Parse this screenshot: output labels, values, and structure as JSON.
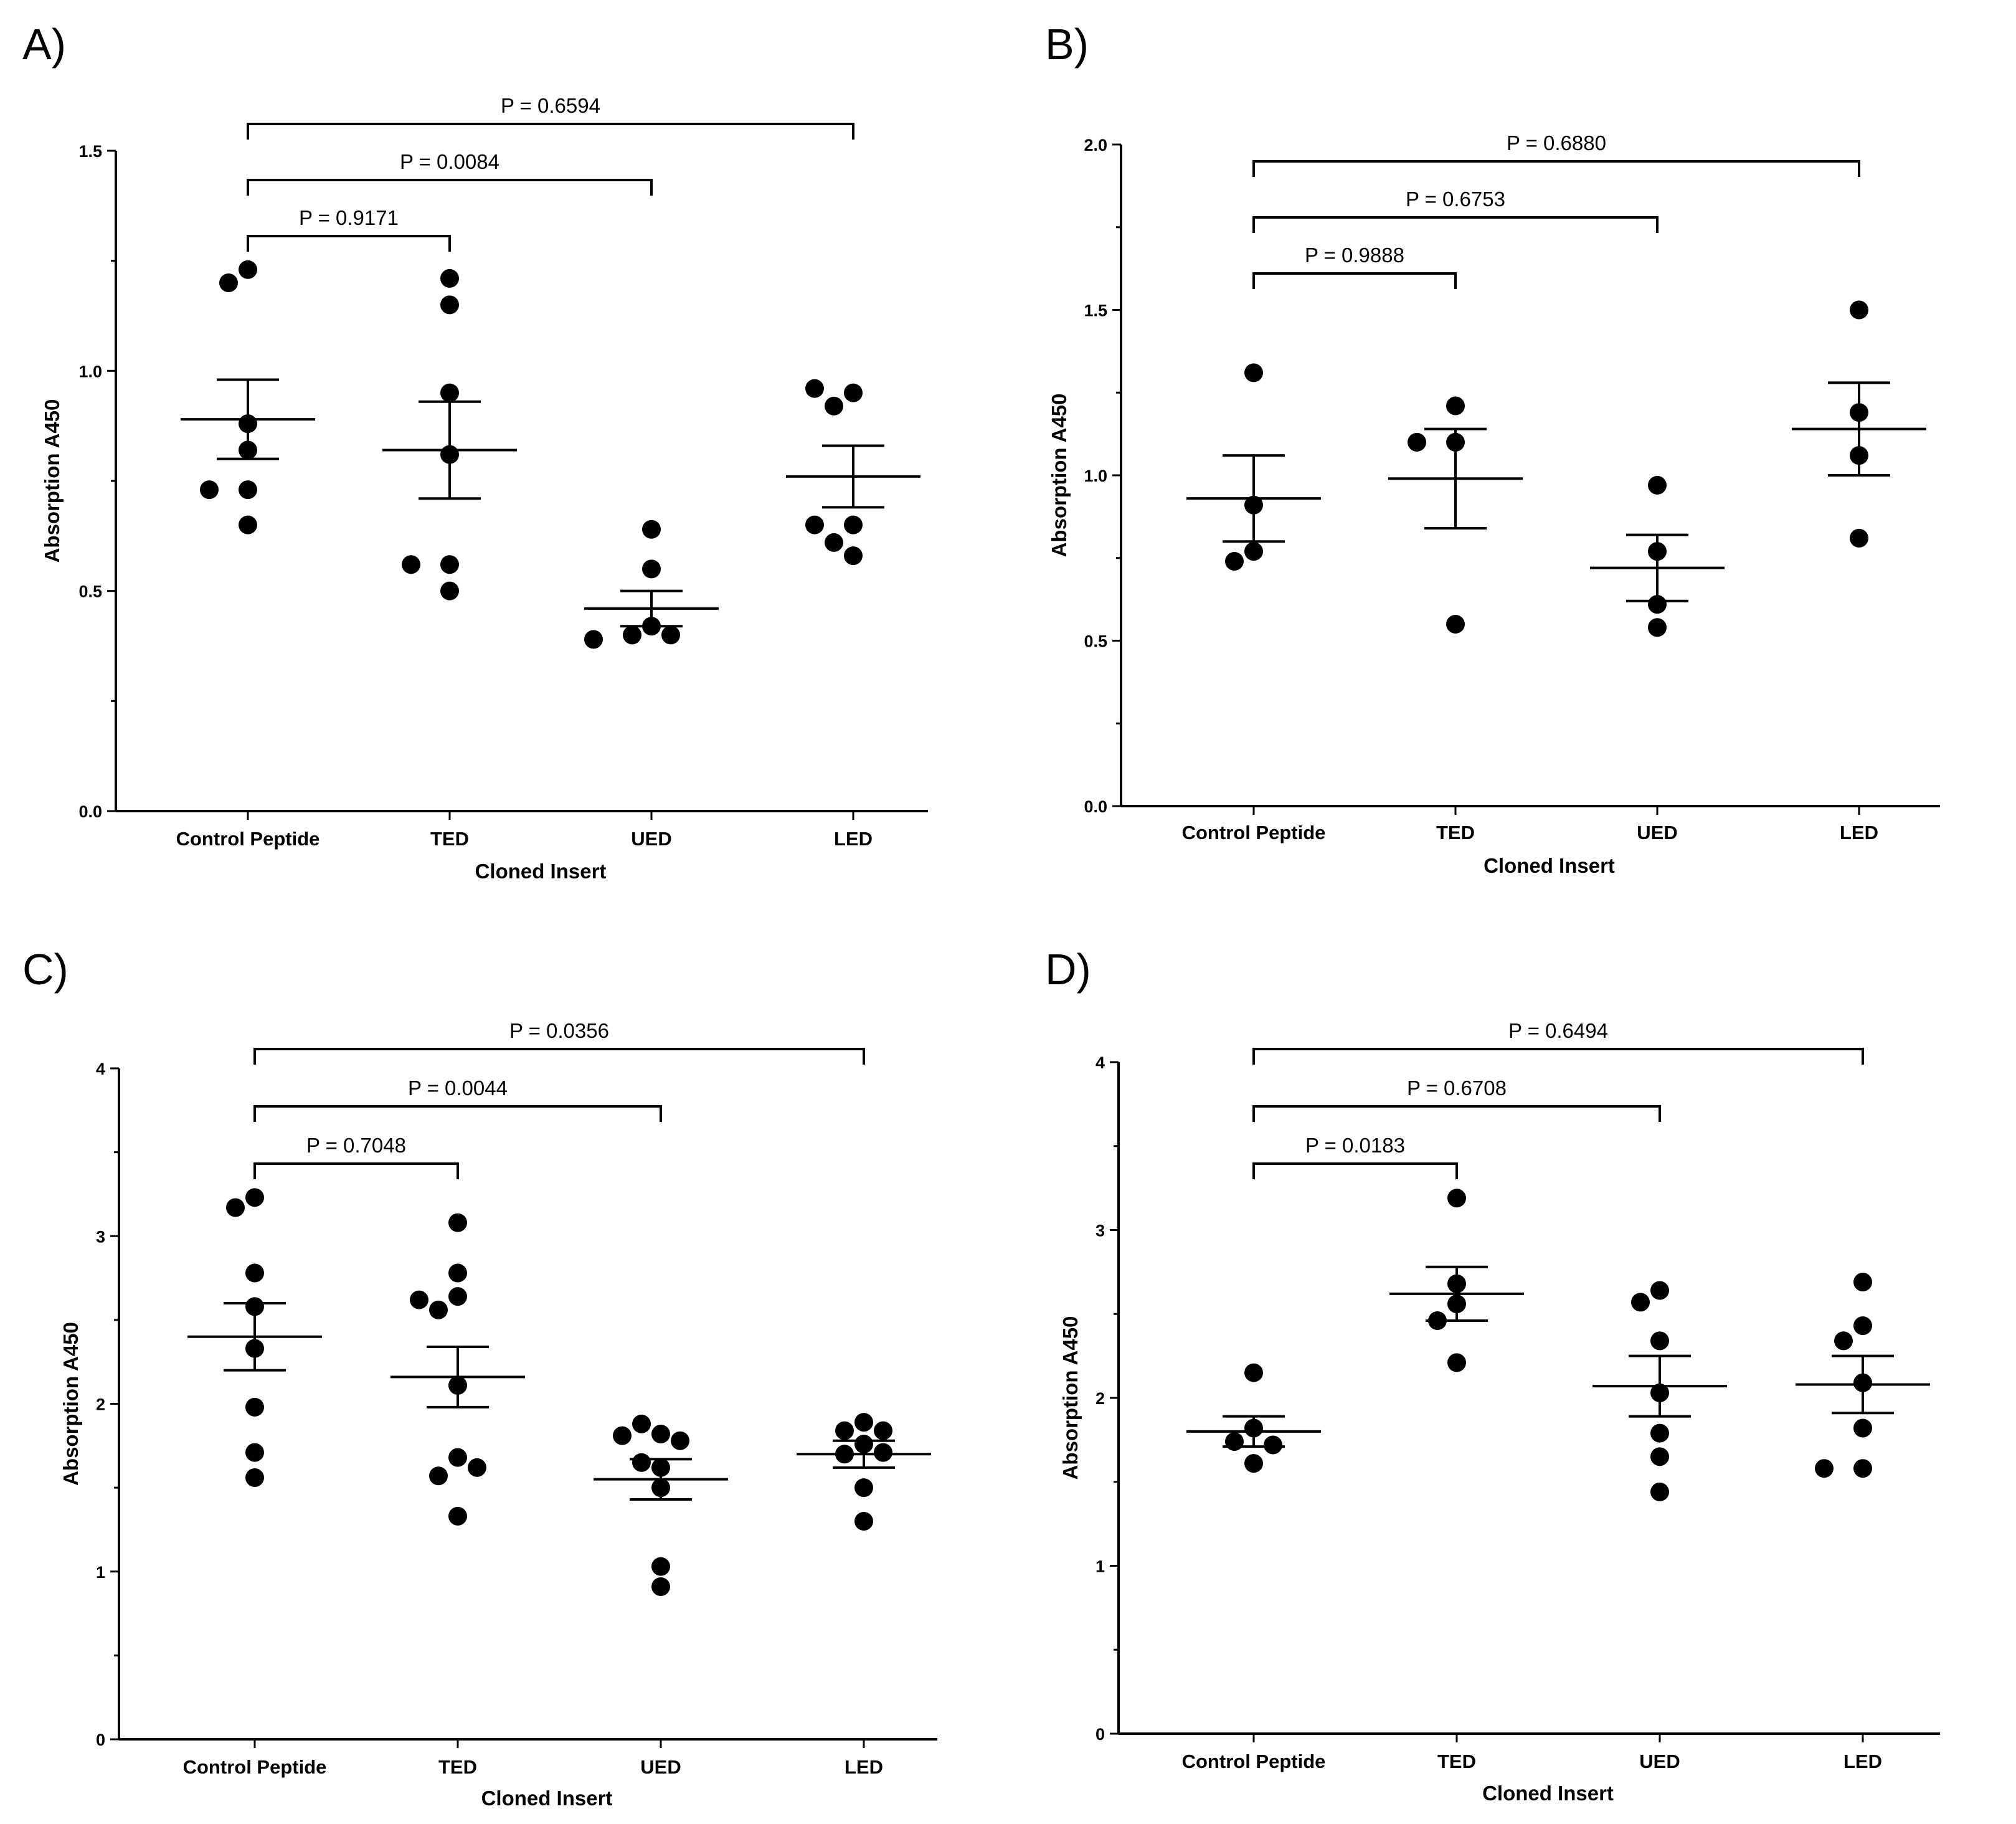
{
  "chart_data": [
    {
      "type": "scatter",
      "panel": "A)",
      "xlabel": "Cloned Insert",
      "ylabel": "Absorption A450",
      "categories": [
        "Control Peptide",
        "TED",
        "UED",
        "LED"
      ],
      "ylim": [
        0,
        1.5
      ],
      "yticks": [
        0.0,
        0.5,
        1.0,
        1.5
      ],
      "ytick_labels": [
        "0.0",
        "0.5",
        "1.0",
        "1.5"
      ],
      "minor_step": 0.25,
      "points": [
        [
          1.23,
          1.2,
          0.88,
          0.82,
          0.73,
          0.73,
          0.65
        ],
        [
          1.21,
          1.15,
          0.95,
          0.81,
          0.56,
          0.56,
          0.5
        ],
        [
          0.64,
          0.55,
          0.42,
          0.4,
          0.4,
          0.39
        ],
        [
          0.95,
          0.96,
          0.92,
          0.65,
          0.65,
          0.61,
          0.58
        ]
      ],
      "mean": [
        0.89,
        0.82,
        0.46,
        0.76
      ],
      "sem": [
        0.09,
        0.11,
        0.04,
        0.07
      ],
      "comparisons": [
        {
          "from": 0,
          "to": 1,
          "label": "P = 0.9171"
        },
        {
          "from": 0,
          "to": 2,
          "label": "P = 0.0084"
        },
        {
          "from": 0,
          "to": 3,
          "label": "P = 0.6594"
        }
      ]
    },
    {
      "type": "scatter",
      "panel": "B)",
      "xlabel": "Cloned Insert",
      "ylabel": "Absorption A450",
      "categories": [
        "Control Peptide",
        "TED",
        "UED",
        "LED"
      ],
      "ylim": [
        0,
        2.0
      ],
      "yticks": [
        0.0,
        0.5,
        1.0,
        1.5,
        2.0
      ],
      "ytick_labels": [
        "0.0",
        "0.5",
        "1.0",
        "1.5",
        "2.0"
      ],
      "minor_step": 0.25,
      "points": [
        [
          1.31,
          0.91,
          0.77,
          0.74
        ],
        [
          1.21,
          1.1,
          1.1,
          0.55
        ],
        [
          0.97,
          0.77,
          0.61,
          0.54
        ],
        [
          1.5,
          1.19,
          1.06,
          0.81
        ]
      ],
      "mean": [
        0.93,
        0.99,
        0.72,
        1.14
      ],
      "sem": [
        0.13,
        0.15,
        0.1,
        0.14
      ],
      "comparisons": [
        {
          "from": 0,
          "to": 1,
          "label": "P = 0.9888"
        },
        {
          "from": 0,
          "to": 2,
          "label": "P = 0.6753"
        },
        {
          "from": 0,
          "to": 3,
          "label": "P = 0.6880"
        }
      ]
    },
    {
      "type": "scatter",
      "panel": "C)",
      "xlabel": "Cloned Insert",
      "ylabel": "Absorption A450",
      "categories": [
        "Control Peptide",
        "TED",
        "UED",
        "LED"
      ],
      "ylim": [
        0,
        4
      ],
      "yticks": [
        0,
        1,
        2,
        3,
        4
      ],
      "ytick_labels": [
        "0",
        "1",
        "2",
        "3",
        "4"
      ],
      "minor_step": 0.5,
      "points": [
        [
          3.23,
          3.17,
          2.78,
          2.58,
          2.33,
          1.71,
          1.98,
          1.56
        ],
        [
          3.08,
          2.64,
          2.78,
          2.56,
          2.62,
          2.11,
          1.68,
          1.57,
          1.62,
          1.33
        ],
        [
          1.82,
          1.88,
          1.81,
          1.78,
          1.62,
          1.65,
          1.5,
          1.03,
          0.91
        ],
        [
          1.89,
          1.84,
          1.84,
          1.76,
          1.7,
          1.71,
          1.5,
          1.3
        ]
      ],
      "mean": [
        2.4,
        2.16,
        1.55,
        1.7
      ],
      "sem": [
        0.2,
        0.18,
        0.12,
        0.08
      ],
      "comparisons": [
        {
          "from": 0,
          "to": 1,
          "label": "P = 0.7048"
        },
        {
          "from": 0,
          "to": 2,
          "label": "P = 0.0044"
        },
        {
          "from": 0,
          "to": 3,
          "label": "P = 0.0356"
        }
      ]
    },
    {
      "type": "scatter",
      "panel": "D)",
      "xlabel": "Cloned Insert",
      "ylabel": "Absorption A450",
      "categories": [
        "Control Peptide",
        "TED",
        "UED",
        "LED"
      ],
      "ylim": [
        0,
        4
      ],
      "yticks": [
        0,
        1,
        2,
        3,
        4
      ],
      "ytick_labels": [
        "0",
        "1",
        "2",
        "3",
        "4"
      ],
      "minor_step": 0.5,
      "points": [
        [
          2.15,
          1.82,
          1.74,
          1.72,
          1.61
        ],
        [
          3.19,
          2.68,
          2.56,
          2.46,
          2.21
        ],
        [
          2.64,
          2.57,
          2.34,
          2.03,
          1.79,
          1.65,
          1.44
        ],
        [
          2.69,
          2.43,
          2.34,
          2.09,
          1.82,
          1.58,
          1.58
        ]
      ],
      "mean": [
        1.8,
        2.62,
        2.07,
        2.08
      ],
      "sem": [
        0.09,
        0.16,
        0.18,
        0.17
      ],
      "comparisons": [
        {
          "from": 0,
          "to": 1,
          "label": "P = 0.0183"
        },
        {
          "from": 0,
          "to": 2,
          "label": "P = 0.6708"
        },
        {
          "from": 0,
          "to": 3,
          "label": "P = 0.6494"
        }
      ]
    }
  ]
}
